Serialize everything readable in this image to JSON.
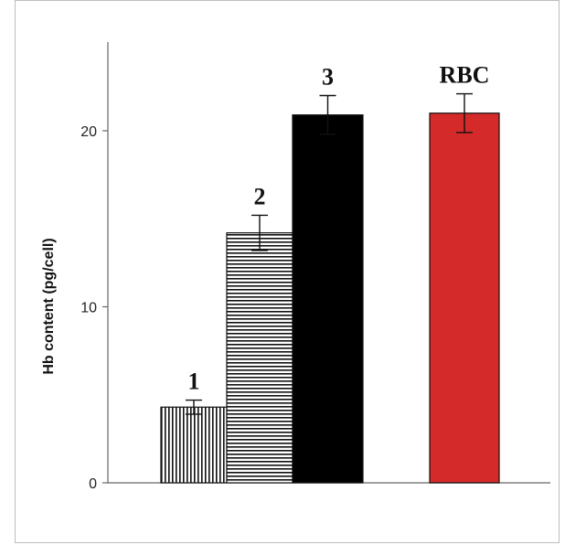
{
  "chart_data": {
    "type": "bar",
    "title": "",
    "xlabel": "",
    "ylabel": "Hb content (pg/cell)",
    "ylim": [
      0,
      25
    ],
    "yticks": [
      0,
      10,
      20
    ],
    "grid": false,
    "legend": "none",
    "categories": [
      "1",
      "2",
      "3",
      "RBC"
    ],
    "values": [
      4.3,
      14.2,
      20.9,
      21.0
    ],
    "errors": [
      0.4,
      1.0,
      1.1,
      1.1
    ],
    "bar_styles": [
      "vertical-stripes",
      "horizontal-stripes",
      "solid-black",
      "solid-red"
    ],
    "colors": {
      "bar1": "#000000",
      "bar2": "#000000",
      "bar3": "#000000",
      "bar4": "#d42a2a",
      "axis": "#666666"
    }
  }
}
